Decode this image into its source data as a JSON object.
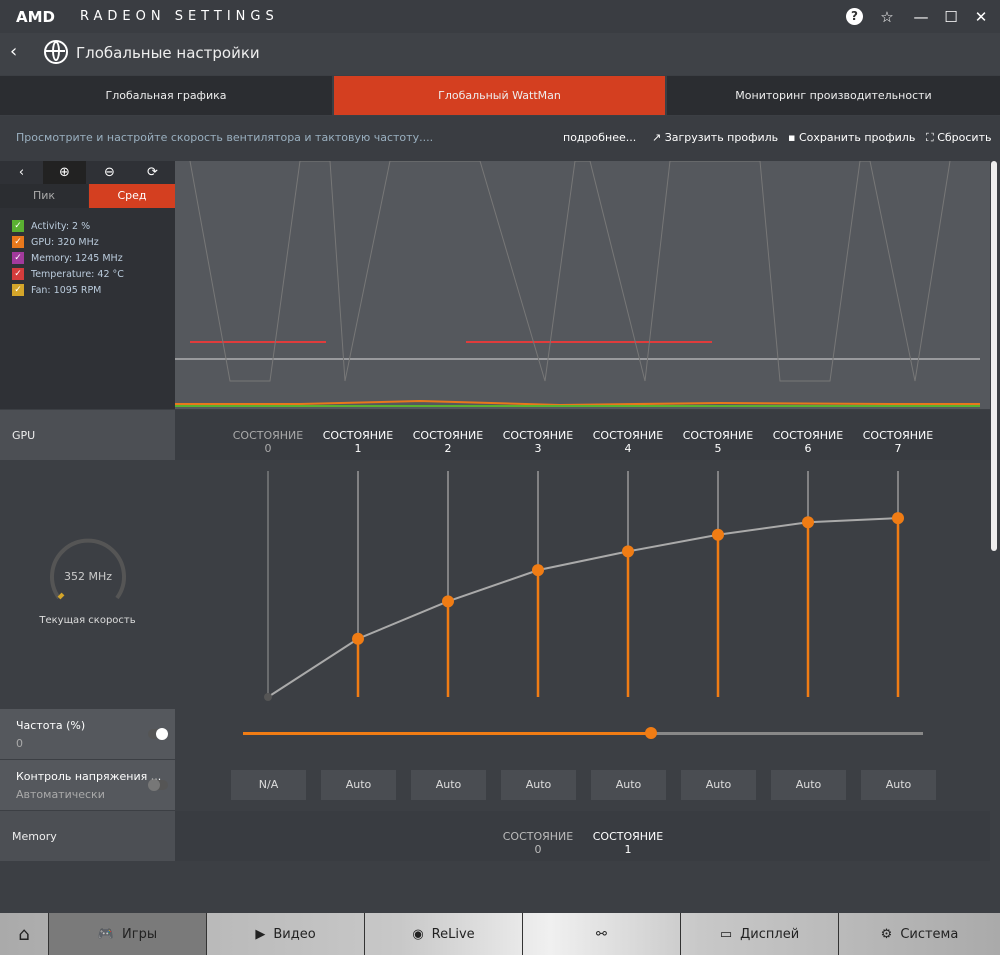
{
  "app": {
    "logo": "AMD",
    "name": "RADEON SETTINGS"
  },
  "window": {
    "help": "?",
    "star": "☆",
    "min": "—",
    "max": "☐",
    "close": "✕"
  },
  "header": {
    "back": "‹",
    "title": "Глобальные настройки"
  },
  "tabs": [
    {
      "label": "Глобальная графика"
    },
    {
      "label": "Глобальный WattMan",
      "active": true
    },
    {
      "label": "Мониторинг производительности"
    }
  ],
  "actions": {
    "description": "Просмотрите и настройте скорость вентилятора и тактовую частоту....",
    "more": "подробнее...",
    "load": "Загрузить профиль",
    "save": "Сохранить профиль",
    "reset": "Сбросить"
  },
  "monitor": {
    "tools": [
      "‹",
      "⊕",
      "⊖",
      "⟳"
    ],
    "peak": "Пик",
    "avg": "Сред",
    "legend": [
      {
        "label": "Activity: 2 %",
        "color": "#5ab031"
      },
      {
        "label": "GPU: 320 MHz",
        "color": "#e8781c"
      },
      {
        "label": "Memory: 1245 MHz",
        "color": "#a23a9c"
      },
      {
        "label": "Temperature: 42 °C",
        "color": "#d43c3c"
      },
      {
        "label": "Fan: 1095 RPM",
        "color": "#d4a52a"
      }
    ]
  },
  "gpu": {
    "label": "GPU",
    "states": [
      "СОСТОЯНИЕ 0",
      "СОСТОЯНИЕ 1",
      "СОСТОЯНИЕ 2",
      "СОСТОЯНИЕ 3",
      "СОСТОЯНИЕ 4",
      "СОСТОЯНИЕ 5",
      "СОСТОЯНИЕ 6",
      "СОСТОЯНИЕ 7"
    ],
    "gauge_value": "352 MHz",
    "gauge_label": "Текущая скорость",
    "curve_levels": [
      0,
      0.28,
      0.46,
      0.61,
      0.7,
      0.78,
      0.84,
      0.86
    ]
  },
  "frequency": {
    "label": "Частота (%)",
    "value": "0",
    "slider_fraction": 0.6
  },
  "voltage": {
    "label": "Контроль напряжения ...",
    "value": "Автоматически",
    "states": [
      "N/A",
      "Auto",
      "Auto",
      "Auto",
      "Auto",
      "Auto",
      "Auto",
      "Auto"
    ]
  },
  "memory": {
    "label": "Memory",
    "states": [
      "СОСТОЯНИЕ 0",
      "СОСТОЯНИЕ 1"
    ]
  },
  "colors": {
    "accent": "#f07c14",
    "tab_active": "#d43f20"
  },
  "bottom_nav": [
    {
      "icon": "home-icon",
      "label": ""
    },
    {
      "icon": "gamepad-icon",
      "label": "Игры"
    },
    {
      "icon": "play-icon",
      "label": "Видео"
    },
    {
      "icon": "relive-icon",
      "label": "ReLive"
    },
    {
      "icon": "share-icon",
      "label": ""
    },
    {
      "icon": "display-icon",
      "label": "Дисплей"
    },
    {
      "icon": "gear-icon",
      "label": "Система"
    }
  ]
}
